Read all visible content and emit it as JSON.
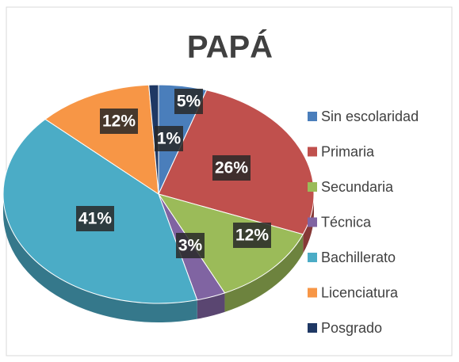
{
  "chart_data": {
    "type": "pie3d",
    "title": "PAPÁ",
    "categories": [
      "Sin escolaridad",
      "Primaria",
      "Secundaria",
      "Técnica",
      "Bachillerato",
      "Licenciatura",
      "Posgrado"
    ],
    "values": [
      5,
      26,
      12,
      3,
      41,
      12,
      1
    ],
    "value_labels": [
      "5%",
      "26%",
      "12%",
      "3%",
      "41%",
      "12%",
      "1%"
    ],
    "colors": [
      "#4a7ebb",
      "#c0504d",
      "#9bbb59",
      "#8064a2",
      "#4bacc6",
      "#f79646",
      "#1f3864"
    ],
    "legend": "right"
  }
}
